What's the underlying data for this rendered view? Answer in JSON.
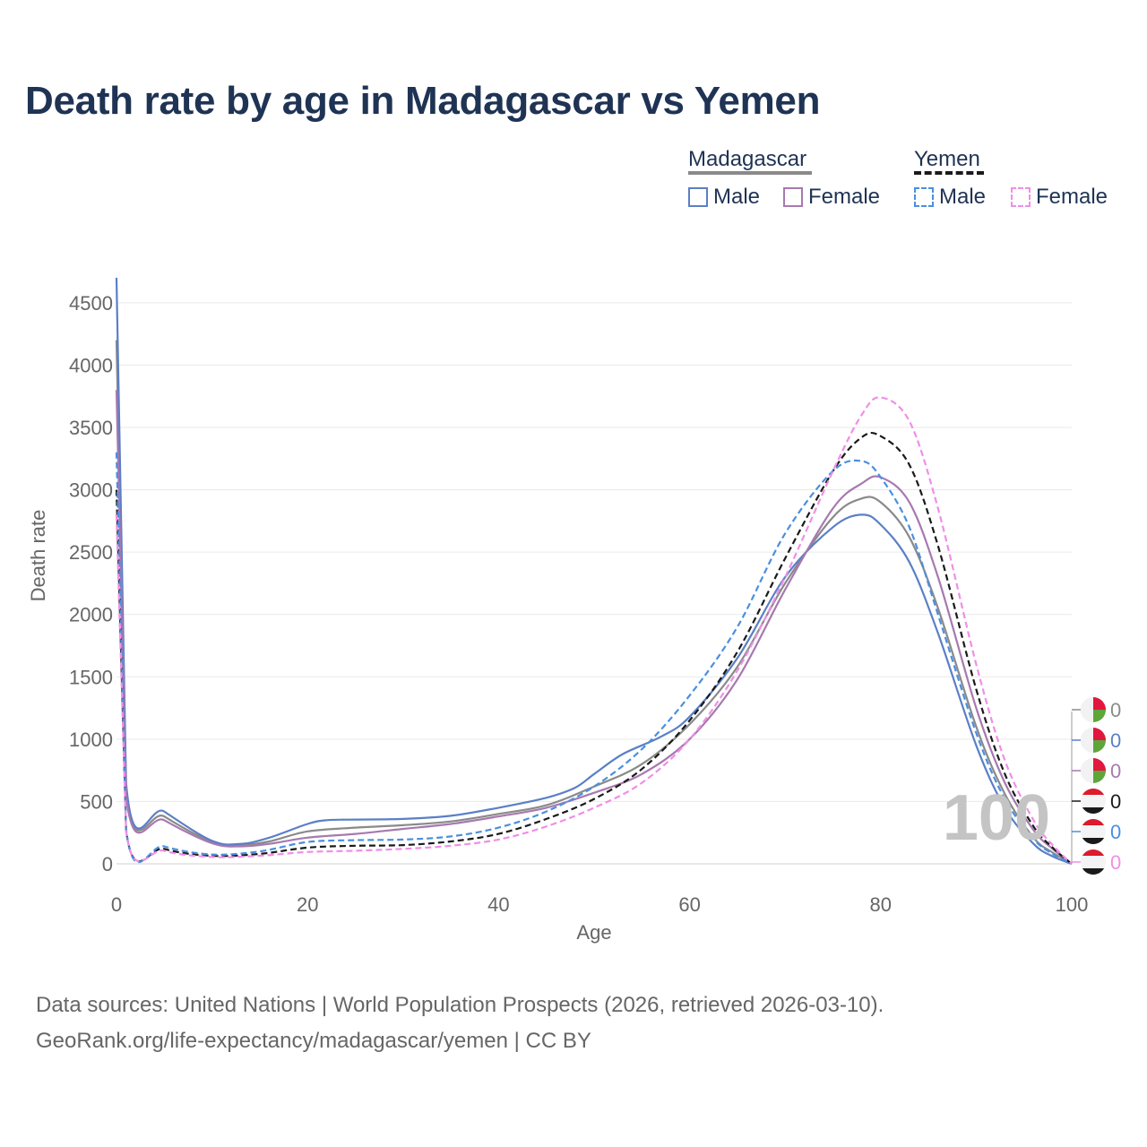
{
  "title": "Death rate by age in Madagascar vs Yemen",
  "legend": {
    "madagascar": {
      "label": "Madagascar",
      "male": "Male",
      "female": "Female"
    },
    "yemen": {
      "label": "Yemen",
      "male": "Male",
      "female": "Female"
    }
  },
  "age_readout": "100",
  "end_values": [
    {
      "label": "0",
      "color": "#8a8a8a",
      "flag": "madagascar-flag-icon"
    },
    {
      "label": "0",
      "color": "#5b7fc7",
      "flag": "madagascar-flag-icon"
    },
    {
      "label": "0",
      "color": "#a779b0",
      "flag": "madagascar-flag-icon"
    },
    {
      "label": "0",
      "color": "#1a1a1a",
      "flag": "yemen-flag-icon"
    },
    {
      "label": "0",
      "color": "#4a8fe0",
      "flag": "yemen-flag-icon"
    },
    {
      "label": "0",
      "color": "#f08ee6",
      "flag": "yemen-flag-icon"
    }
  ],
  "footer": {
    "source": "Data sources: United Nations | World Population Prospects (2026, retrieved 2026-03-10).",
    "link": "GeoRank.org/life-expectancy/madagascar/yemen | CC BY"
  },
  "chart_data": {
    "type": "line",
    "xlabel": "Age",
    "ylabel": "Death rate",
    "xlim": [
      0,
      100
    ],
    "ylim": [
      0,
      4700
    ],
    "xticks": [
      0,
      20,
      40,
      60,
      80,
      100
    ],
    "yticks": [
      0,
      500,
      1000,
      1500,
      2000,
      2500,
      3000,
      3500,
      4000,
      4500
    ],
    "grid": true,
    "series": [
      {
        "name": "Madagascar total",
        "color": "#8a8a8a",
        "dash": "solid",
        "width": 2.2,
        "points": [
          [
            0,
            4200
          ],
          [
            1,
            600
          ],
          [
            5,
            380
          ],
          [
            10,
            175
          ],
          [
            13,
            150
          ],
          [
            16,
            180
          ],
          [
            20,
            260
          ],
          [
            25,
            290
          ],
          [
            30,
            310
          ],
          [
            35,
            340
          ],
          [
            40,
            400
          ],
          [
            45,
            470
          ],
          [
            50,
            620
          ],
          [
            55,
            800
          ],
          [
            60,
            1120
          ],
          [
            65,
            1580
          ],
          [
            70,
            2250
          ],
          [
            75,
            2780
          ],
          [
            78,
            2930
          ],
          [
            80,
            2900
          ],
          [
            83,
            2620
          ],
          [
            86,
            2050
          ],
          [
            90,
            1100
          ],
          [
            93,
            560
          ],
          [
            96,
            210
          ],
          [
            98,
            90
          ],
          [
            100,
            0
          ]
        ]
      },
      {
        "name": "Madagascar male",
        "color": "#5b7fc7",
        "dash": "solid",
        "width": 2.2,
        "points": [
          [
            0,
            4700
          ],
          [
            1,
            650
          ],
          [
            5,
            420
          ],
          [
            10,
            185
          ],
          [
            13,
            160
          ],
          [
            16,
            210
          ],
          [
            20,
            320
          ],
          [
            22,
            350
          ],
          [
            25,
            355
          ],
          [
            30,
            360
          ],
          [
            35,
            385
          ],
          [
            40,
            450
          ],
          [
            45,
            530
          ],
          [
            48,
            610
          ],
          [
            50,
            720
          ],
          [
            53,
            880
          ],
          [
            57,
            1020
          ],
          [
            60,
            1180
          ],
          [
            65,
            1650
          ],
          [
            70,
            2300
          ],
          [
            75,
            2700
          ],
          [
            78,
            2800
          ],
          [
            80,
            2720
          ],
          [
            83,
            2420
          ],
          [
            86,
            1850
          ],
          [
            90,
            950
          ],
          [
            93,
            450
          ],
          [
            96,
            160
          ],
          [
            98,
            60
          ],
          [
            100,
            0
          ]
        ]
      },
      {
        "name": "Madagascar female",
        "color": "#a779b0",
        "dash": "solid",
        "width": 2.2,
        "points": [
          [
            0,
            3800
          ],
          [
            1,
            550
          ],
          [
            5,
            350
          ],
          [
            10,
            165
          ],
          [
            13,
            140
          ],
          [
            16,
            160
          ],
          [
            20,
            210
          ],
          [
            25,
            240
          ],
          [
            30,
            280
          ],
          [
            35,
            320
          ],
          [
            40,
            380
          ],
          [
            45,
            450
          ],
          [
            50,
            570
          ],
          [
            55,
            720
          ],
          [
            60,
            1000
          ],
          [
            65,
            1480
          ],
          [
            70,
            2200
          ],
          [
            75,
            2850
          ],
          [
            78,
            3050
          ],
          [
            80,
            3100
          ],
          [
            83,
            2900
          ],
          [
            86,
            2300
          ],
          [
            90,
            1250
          ],
          [
            93,
            650
          ],
          [
            96,
            270
          ],
          [
            98,
            120
          ],
          [
            100,
            0
          ]
        ]
      },
      {
        "name": "Yemen total",
        "color": "#1a1a1a",
        "dash": "dashed",
        "width": 2.2,
        "points": [
          [
            0,
            3000
          ],
          [
            1,
            270
          ],
          [
            5,
            120
          ],
          [
            10,
            65
          ],
          [
            15,
            80
          ],
          [
            20,
            130
          ],
          [
            25,
            145
          ],
          [
            30,
            150
          ],
          [
            35,
            180
          ],
          [
            40,
            240
          ],
          [
            45,
            360
          ],
          [
            50,
            520
          ],
          [
            55,
            760
          ],
          [
            60,
            1150
          ],
          [
            65,
            1700
          ],
          [
            70,
            2450
          ],
          [
            75,
            3150
          ],
          [
            78,
            3420
          ],
          [
            80,
            3430
          ],
          [
            83,
            3200
          ],
          [
            86,
            2550
          ],
          [
            90,
            1400
          ],
          [
            93,
            720
          ],
          [
            96,
            300
          ],
          [
            98,
            130
          ],
          [
            100,
            0
          ]
        ]
      },
      {
        "name": "Yemen male",
        "color": "#4a8fe0",
        "dash": "dashed",
        "width": 2.2,
        "points": [
          [
            0,
            3300
          ],
          [
            1,
            280
          ],
          [
            5,
            140
          ],
          [
            10,
            75
          ],
          [
            15,
            100
          ],
          [
            20,
            175
          ],
          [
            25,
            190
          ],
          [
            30,
            195
          ],
          [
            35,
            220
          ],
          [
            40,
            290
          ],
          [
            45,
            420
          ],
          [
            50,
            620
          ],
          [
            55,
            920
          ],
          [
            60,
            1350
          ],
          [
            65,
            1900
          ],
          [
            70,
            2650
          ],
          [
            75,
            3150
          ],
          [
            78,
            3230
          ],
          [
            80,
            3100
          ],
          [
            83,
            2700
          ],
          [
            86,
            2000
          ],
          [
            90,
            1050
          ],
          [
            93,
            520
          ],
          [
            96,
            200
          ],
          [
            98,
            80
          ],
          [
            100,
            0
          ]
        ]
      },
      {
        "name": "Yemen female",
        "color": "#f08ee6",
        "dash": "dashed",
        "width": 2.2,
        "points": [
          [
            0,
            2800
          ],
          [
            1,
            260
          ],
          [
            5,
            105
          ],
          [
            10,
            55
          ],
          [
            15,
            65
          ],
          [
            20,
            95
          ],
          [
            25,
            105
          ],
          [
            30,
            120
          ],
          [
            35,
            145
          ],
          [
            40,
            195
          ],
          [
            45,
            300
          ],
          [
            50,
            450
          ],
          [
            55,
            650
          ],
          [
            60,
            1000
          ],
          [
            65,
            1550
          ],
          [
            70,
            2300
          ],
          [
            75,
            3150
          ],
          [
            78,
            3600
          ],
          [
            80,
            3740
          ],
          [
            83,
            3550
          ],
          [
            86,
            2850
          ],
          [
            90,
            1600
          ],
          [
            93,
            830
          ],
          [
            96,
            350
          ],
          [
            98,
            150
          ],
          [
            100,
            0
          ]
        ]
      }
    ]
  }
}
